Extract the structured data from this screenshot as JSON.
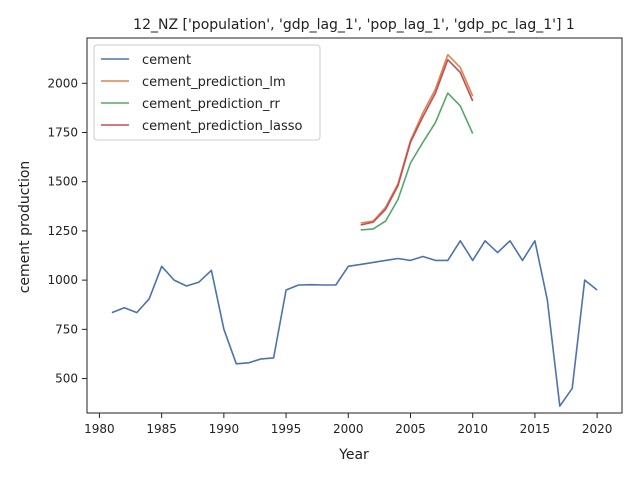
{
  "chart_data": {
    "type": "line",
    "title": "12_NZ ['population', 'gdp_lag_1', 'pop_lag_1', 'gdp_pc_lag_1'] 1",
    "xlabel": "Year",
    "ylabel": "cement production",
    "xlim": [
      1979,
      2022
    ],
    "ylim": [
      325,
      2230
    ],
    "x_ticks": [
      1980,
      1985,
      1990,
      1995,
      2000,
      2005,
      2010,
      2015,
      2020
    ],
    "y_ticks": [
      500,
      750,
      1000,
      1250,
      1500,
      1750,
      2000
    ],
    "grid": false,
    "legend_position": "upper-left",
    "series": [
      {
        "name": "cement",
        "color": "#4c72b0",
        "x": [
          1981,
          1982,
          1983,
          1984,
          1985,
          1986,
          1987,
          1988,
          1989,
          1990,
          1991,
          1992,
          1993,
          1994,
          1995,
          1996,
          1997,
          1998,
          1999,
          2000,
          2001,
          2002,
          2003,
          2004,
          2005,
          2006,
          2007,
          2008,
          2009,
          2010,
          2011,
          2012,
          2013,
          2014,
          2015,
          2016,
          2017,
          2018,
          2019,
          2020
        ],
        "values": [
          835,
          860,
          835,
          905,
          1070,
          1000,
          970,
          990,
          1050,
          750,
          575,
          580,
          600,
          605,
          950,
          975,
          977,
          975,
          975,
          1070,
          1080,
          1090,
          1100,
          1110,
          1100,
          1120,
          1100,
          1100,
          1200,
          1100,
          1200,
          1140,
          1200,
          1100,
          1200,
          900,
          360,
          450,
          1000,
          950
        ]
      },
      {
        "name": "cement_prediction_lm",
        "color": "#dd8452",
        "x": [
          2001,
          2002,
          2003,
          2004,
          2005,
          2006,
          2007,
          2008,
          2009,
          2010
        ],
        "values": [
          1290,
          1300,
          1370,
          1490,
          1710,
          1850,
          1970,
          2145,
          2080,
          1935
        ]
      },
      {
        "name": "cement_prediction_rr",
        "color": "#55a868",
        "x": [
          2001,
          2002,
          2003,
          2004,
          2005,
          2006,
          2007,
          2008,
          2009,
          2010
        ],
        "values": [
          1255,
          1260,
          1300,
          1410,
          1595,
          1700,
          1800,
          1950,
          1885,
          1745
        ]
      },
      {
        "name": "cement_prediction_lasso",
        "color": "#c44e52",
        "x": [
          2001,
          2002,
          2003,
          2004,
          2005,
          2006,
          2007,
          2008,
          2009,
          2010
        ],
        "values": [
          1280,
          1295,
          1360,
          1480,
          1700,
          1830,
          1950,
          2120,
          2055,
          1910
        ]
      }
    ]
  }
}
